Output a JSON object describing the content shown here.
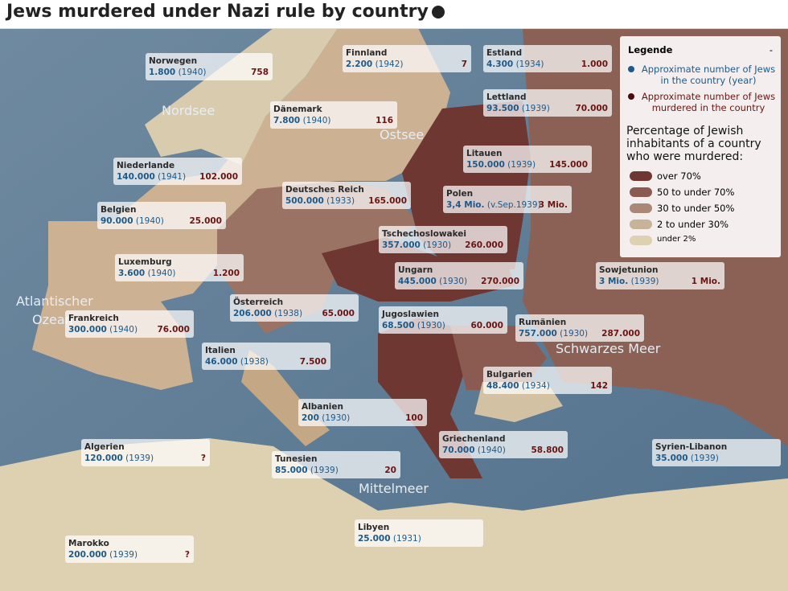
{
  "title": "Jews murdered under Nazi rule by country",
  "legend": {
    "title": "Legende",
    "toggle": "-",
    "population_label": "Approximate number of Jews in the country (year)",
    "murdered_label": "Approximate number of Jews murdered in the country",
    "scale_title": "Percentage of Jewish inhabitants of a country who were murdered:",
    "scale": [
      "over 70%",
      "50 to under 70%",
      "30 to under 50%",
      "2 to under 30%",
      "under 2%"
    ]
  },
  "seas": [
    "Nordsee",
    "Ostsee",
    "Atlantischer",
    "Ozean",
    "Schwarzes Meer",
    "Mittelmeer"
  ],
  "countries": [
    {
      "name": "Norwegen",
      "population": "1.800",
      "year": "(1940)",
      "murdered": "758"
    },
    {
      "name": "Finnland",
      "population": "2.200",
      "year": "(1942)",
      "murdered": "7"
    },
    {
      "name": "Estland",
      "population": "4.300",
      "year": "(1934)",
      "murdered": "1.000"
    },
    {
      "name": "Dänemark",
      "population": "7.800",
      "year": "(1940)",
      "murdered": "116"
    },
    {
      "name": "Lettland",
      "population": "93.500",
      "year": "(1939)",
      "murdered": "70.000"
    },
    {
      "name": "Niederlande",
      "population": "140.000",
      "year": "(1941)",
      "murdered": "102.000"
    },
    {
      "name": "Litauen",
      "population": "150.000",
      "year": "(1939)",
      "murdered": "145.000"
    },
    {
      "name": "Deutsches Reich",
      "population": "500.000",
      "year": "(1933)",
      "murdered": "165.000"
    },
    {
      "name": "Polen",
      "population": "3,4 Mio.",
      "year": "(v.Sep.1939)",
      "murdered": "3 Mio."
    },
    {
      "name": "Belgien",
      "population": "90.000",
      "year": "(1940)",
      "murdered": "25.000"
    },
    {
      "name": "Tschechoslowakei",
      "population": "357.000",
      "year": "(1930)",
      "murdered": "260.000"
    },
    {
      "name": "Luxemburg",
      "population": "3.600",
      "year": "(1940)",
      "murdered": "1.200"
    },
    {
      "name": "Ungarn",
      "population": "445.000",
      "year": "(1930)",
      "murdered": "270.000"
    },
    {
      "name": "Sowjetunion",
      "population": "3 Mio.",
      "year": "(1939)",
      "murdered": "1 Mio."
    },
    {
      "name": "Österreich",
      "population": "206.000",
      "year": "(1938)",
      "murdered": "65.000"
    },
    {
      "name": "Frankreich",
      "population": "300.000",
      "year": "(1940)",
      "murdered": "76.000"
    },
    {
      "name": "Jugoslawien",
      "population": "68.500",
      "year": "(1930)",
      "murdered": "60.000"
    },
    {
      "name": "Rumänien",
      "population": "757.000",
      "year": "(1930)",
      "murdered": "287.000"
    },
    {
      "name": "Italien",
      "population": "46.000",
      "year": "(1938)",
      "murdered": "7.500"
    },
    {
      "name": "Bulgarien",
      "population": "48.400",
      "year": "(1934)",
      "murdered": "142"
    },
    {
      "name": "Albanien",
      "population": "200",
      "year": "(1930)",
      "murdered": "100"
    },
    {
      "name": "Griechenland",
      "population": "70.000",
      "year": "(1940)",
      "murdered": "58.800"
    },
    {
      "name": "Syrien-Libanon",
      "population": "35.000",
      "year": "(1939)"
    },
    {
      "name": "Algerien",
      "population": "120.000",
      "year": "(1939)",
      "murdered": "?"
    },
    {
      "name": "Tunesien",
      "population": "85.000",
      "year": "(1939)",
      "murdered": "20"
    },
    {
      "name": "Libyen",
      "population": "25.000",
      "year": "(1931)"
    },
    {
      "name": "Marokko",
      "population": "200.000",
      "year": "(1939)",
      "murdered": "?"
    }
  ]
}
